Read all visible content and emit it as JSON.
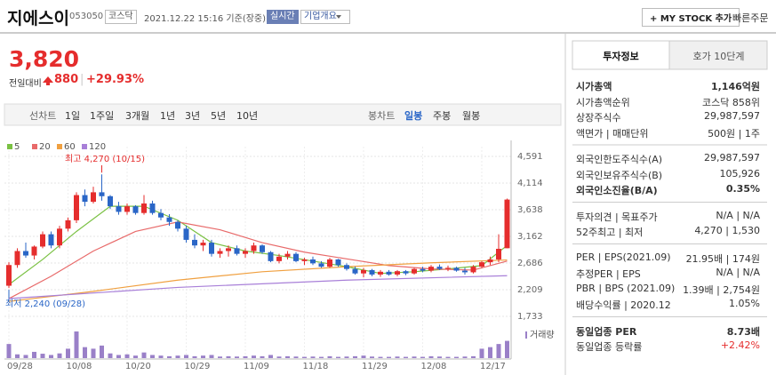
{
  "header": {
    "name": "지에스이",
    "code": "053050",
    "market": "코스닥",
    "time": "2021.12.22 15:16 기준(장중)",
    "realtime": "실시간",
    "overview": "기업개요",
    "mystock": "+ MY STOCK 추가",
    "quick_order": "빠른주문"
  },
  "price": {
    "price": "3,820",
    "change_label": "전일대비",
    "change": "880",
    "change_pct": "+29.93%"
  },
  "tabs": {
    "line_label": "선차트",
    "line": [
      "1일",
      "1주일",
      "3개월",
      "1년",
      "3년",
      "5년",
      "10년"
    ],
    "candle_label": "봉차트",
    "candle": [
      "일봉",
      "주봉",
      "월봉"
    ],
    "active_candle": 0
  },
  "chart": {
    "type": "candlestick",
    "up_color": "#e52d2d",
    "down_color": "#2a66c7",
    "volume_color": "#9a80c8",
    "grid": true,
    "ylim": [
      1590,
      4766
    ],
    "yticks": [
      {
        "value": 4591,
        "label": "4,591"
      },
      {
        "value": 4114,
        "label": "4,114"
      },
      {
        "value": 3638,
        "label": "3,638"
      },
      {
        "value": 3162,
        "label": "3,162"
      },
      {
        "value": 2686,
        "label": "2,686"
      },
      {
        "value": 2209,
        "label": "2,209"
      },
      {
        "value": 1733,
        "label": "1,733"
      }
    ],
    "categories": [
      "09/28",
      null,
      null,
      null,
      null,
      null,
      null,
      "10/08",
      null,
      null,
      null,
      null,
      null,
      null,
      "10/20",
      null,
      null,
      null,
      null,
      null,
      null,
      "10/29",
      null,
      null,
      null,
      null,
      null,
      null,
      "11/09",
      null,
      null,
      null,
      null,
      null,
      null,
      "11/18",
      null,
      null,
      null,
      null,
      null,
      null,
      "11/29",
      null,
      null,
      null,
      null,
      null,
      null,
      "12/08",
      null,
      null,
      null,
      null,
      null,
      null,
      "12/17",
      null,
      null,
      null
    ],
    "ohlc": [
      [
        2280,
        2700,
        2240,
        2650
      ],
      [
        2650,
        2950,
        2600,
        2900
      ],
      [
        2900,
        3050,
        2780,
        2820
      ],
      [
        2820,
        3000,
        2750,
        2980
      ],
      [
        2980,
        3250,
        2950,
        3200
      ],
      [
        3200,
        3250,
        2950,
        3000
      ],
      [
        3000,
        3350,
        2950,
        3300
      ],
      [
        3300,
        3500,
        3250,
        3450
      ],
      [
        3450,
        3950,
        3400,
        3900
      ],
      [
        3900,
        4000,
        3700,
        3780
      ],
      [
        3780,
        4050,
        3750,
        3950
      ],
      [
        3950,
        4270,
        3800,
        3880
      ],
      [
        3880,
        3900,
        3650,
        3700
      ],
      [
        3700,
        3780,
        3550,
        3600
      ],
      [
        3600,
        3750,
        3550,
        3700
      ],
      [
        3700,
        3720,
        3550,
        3580
      ],
      [
        3580,
        3900,
        3550,
        3750
      ],
      [
        3750,
        3800,
        3550,
        3580
      ],
      [
        3580,
        3650,
        3450,
        3500
      ],
      [
        3500,
        3560,
        3350,
        3420
      ],
      [
        3420,
        3450,
        3250,
        3300
      ],
      [
        3300,
        3350,
        3050,
        3100
      ],
      [
        3100,
        3200,
        2950,
        3000
      ],
      [
        3000,
        3100,
        2900,
        3050
      ],
      [
        3050,
        3100,
        2800,
        2850
      ],
      [
        2850,
        2950,
        2780,
        2900
      ],
      [
        2900,
        3000,
        2800,
        2950
      ],
      [
        2950,
        3000,
        2820,
        2850
      ],
      [
        2850,
        2950,
        2780,
        2900
      ],
      [
        2900,
        3050,
        2850,
        3000
      ],
      [
        3000,
        3020,
        2850,
        2880
      ],
      [
        2880,
        2900,
        2700,
        2720
      ],
      [
        2720,
        2850,
        2680,
        2800
      ],
      [
        2800,
        2900,
        2750,
        2850
      ],
      [
        2850,
        2880,
        2700,
        2720
      ],
      [
        2720,
        2780,
        2650,
        2750
      ],
      [
        2750,
        2800,
        2650,
        2680
      ],
      [
        2680,
        2720,
        2600,
        2620
      ],
      [
        2620,
        2780,
        2600,
        2750
      ],
      [
        2750,
        2760,
        2620,
        2650
      ],
      [
        2650,
        2680,
        2550,
        2580
      ],
      [
        2580,
        2620,
        2480,
        2500
      ],
      [
        2500,
        2600,
        2430,
        2560
      ],
      [
        2560,
        2580,
        2450,
        2480
      ],
      [
        2480,
        2560,
        2440,
        2530
      ],
      [
        2530,
        2560,
        2460,
        2480
      ],
      [
        2480,
        2560,
        2450,
        2540
      ],
      [
        2540,
        2560,
        2470,
        2500
      ],
      [
        2500,
        2600,
        2480,
        2580
      ],
      [
        2580,
        2620,
        2520,
        2550
      ],
      [
        2550,
        2650,
        2520,
        2620
      ],
      [
        2620,
        2660,
        2560,
        2580
      ],
      [
        2580,
        2640,
        2540,
        2600
      ],
      [
        2600,
        2620,
        2530,
        2550
      ],
      [
        2550,
        2600,
        2480,
        2520
      ],
      [
        2520,
        2650,
        2500,
        2620
      ],
      [
        2620,
        2720,
        2600,
        2700
      ],
      [
        2700,
        2800,
        2650,
        2750
      ],
      [
        2750,
        3200,
        2700,
        2940
      ],
      [
        2950,
        3838,
        2950,
        3820
      ]
    ],
    "volume": [
      45,
      12,
      10,
      20,
      14,
      10,
      15,
      30,
      85,
      35,
      30,
      40,
      15,
      10,
      12,
      8,
      18,
      10,
      8,
      6,
      8,
      10,
      6,
      8,
      10,
      5,
      6,
      5,
      6,
      8,
      6,
      10,
      5,
      6,
      5,
      4,
      5,
      4,
      6,
      4,
      5,
      6,
      8,
      5,
      4,
      4,
      5,
      4,
      5,
      4,
      6,
      5,
      4,
      4,
      5,
      6,
      30,
      35,
      45,
      55
    ],
    "volume_label": "거래량",
    "ma": [
      {
        "name": "5",
        "color": "#7ac143",
        "x": [
          0,
          4,
          8,
          12,
          16,
          20,
          24,
          28,
          32,
          36,
          40,
          44,
          48,
          52,
          56,
          59
        ],
        "values": [
          2300,
          2750,
          3250,
          3700,
          3700,
          3450,
          3050,
          2900,
          2820,
          2720,
          2620,
          2500,
          2530,
          2580,
          2640,
          3000
        ]
      },
      {
        "name": "20",
        "color": "#e86a6a",
        "x": [
          0,
          5,
          10,
          15,
          20,
          25,
          30,
          35,
          40,
          45,
          50,
          55,
          59
        ],
        "values": [
          2050,
          2450,
          2900,
          3250,
          3420,
          3280,
          3050,
          2880,
          2760,
          2640,
          2580,
          2560,
          2720
        ]
      },
      {
        "name": "60",
        "color": "#f0a040",
        "x": [
          0,
          10,
          20,
          30,
          40,
          50,
          59
        ],
        "values": [
          2000,
          2180,
          2380,
          2530,
          2620,
          2690,
          2740
        ]
      },
      {
        "name": "120",
        "color": "#a87fd8",
        "x": [
          0,
          20,
          40,
          59
        ],
        "values": [
          2050,
          2250,
          2380,
          2460
        ]
      }
    ],
    "high_note": "최고 4,270 (10/15)",
    "low_note": "최저 2,240 (09/28)"
  },
  "info": {
    "tabs": [
      "투자정보",
      "호가 10단계"
    ],
    "groups": [
      [
        {
          "label": "시가총액",
          "value": "1,146억원",
          "bold": true
        },
        {
          "label": "시가총액순위",
          "value": "코스닥 858위"
        },
        {
          "label": "상장주식수",
          "value": "29,987,597"
        },
        {
          "label": "액면가 | 매매단위",
          "value": "500원 | 1주"
        }
      ],
      [
        {
          "label": "외국인한도주식수(A)",
          "value": "29,987,597"
        },
        {
          "label": "외국인보유주식수(B)",
          "value": "105,926"
        },
        {
          "label": "외국인소진율(B/A)",
          "value": "0.35%",
          "bold": true
        }
      ],
      [
        {
          "label": "투자의견 | 목표주가",
          "value": "N/A | N/A"
        },
        {
          "label": "52주최고 | 최저",
          "value": "4,270 | 1,530"
        }
      ],
      [
        {
          "label": "PER | EPS(2021.09)",
          "value": "21.95배 | 174원"
        },
        {
          "label": "추정PER | EPS",
          "value": "N/A | N/A"
        },
        {
          "label": "PBR | BPS (2021.09)",
          "value": "1.39배 | 2,754원"
        },
        {
          "label": "배당수익률 | 2020.12",
          "value": "1.05%"
        }
      ],
      [
        {
          "label": "동일업종 PER",
          "value": "8.73배",
          "bold": true
        },
        {
          "label": "동일업종 등락률",
          "value": "+2.42%",
          "color": "#e52d2d"
        }
      ]
    ]
  }
}
